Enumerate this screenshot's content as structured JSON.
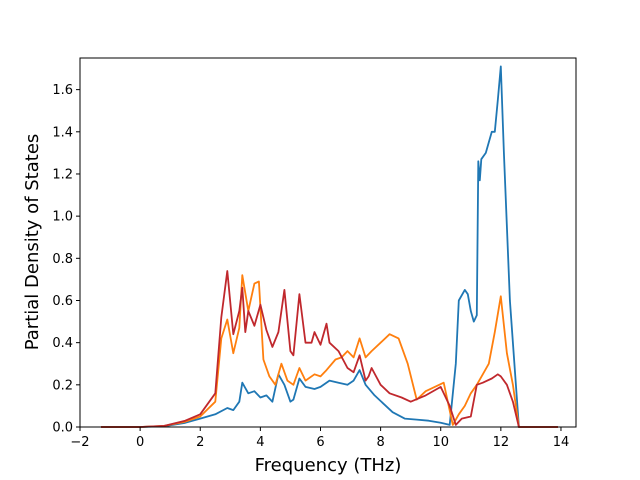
{
  "chart_data": {
    "type": "line",
    "title": "",
    "xlabel": "Frequency (THz)",
    "ylabel": "Partial Density of States",
    "xlim": [
      -2,
      14.5
    ],
    "ylim": [
      0,
      1.75
    ],
    "grid": false,
    "x_ticks": [
      "−2",
      "0",
      "2",
      "4",
      "6",
      "8",
      "10",
      "12",
      "14"
    ],
    "y_ticks": [
      "0.0",
      "0.2",
      "0.4",
      "0.6",
      "0.8",
      "1.0",
      "1.2",
      "1.4",
      "1.6"
    ],
    "series": [
      {
        "color": "#1f77b4",
        "x": [
          -1.3,
          0.0,
          0.8,
          1.5,
          2.0,
          2.5,
          2.9,
          3.1,
          3.3,
          3.4,
          3.6,
          3.8,
          4.0,
          4.2,
          4.4,
          4.6,
          4.8,
          5.0,
          5.1,
          5.3,
          5.5,
          5.8,
          6.0,
          6.3,
          6.6,
          6.9,
          7.1,
          7.3,
          7.5,
          7.8,
          8.1,
          8.4,
          8.8,
          9.2,
          9.6,
          10.0,
          10.3,
          10.5,
          10.6,
          10.8,
          10.9,
          11.0,
          11.1,
          11.2,
          11.25,
          11.3,
          11.35,
          11.5,
          11.7,
          11.8,
          11.9,
          12.0,
          12.1,
          12.2,
          12.3,
          12.5,
          12.6,
          13.0,
          13.9
        ],
        "y": [
          0.0,
          0.0,
          0.004,
          0.02,
          0.04,
          0.06,
          0.09,
          0.08,
          0.12,
          0.21,
          0.16,
          0.17,
          0.14,
          0.15,
          0.12,
          0.25,
          0.2,
          0.12,
          0.13,
          0.23,
          0.19,
          0.18,
          0.19,
          0.22,
          0.21,
          0.2,
          0.22,
          0.27,
          0.2,
          0.15,
          0.11,
          0.07,
          0.04,
          0.035,
          0.03,
          0.02,
          0.01,
          0.3,
          0.6,
          0.65,
          0.63,
          0.55,
          0.5,
          0.53,
          1.26,
          1.17,
          1.27,
          1.3,
          1.4,
          1.4,
          1.55,
          1.71,
          1.3,
          0.95,
          0.6,
          0.2,
          0.0,
          0.0,
          0.0
        ]
      },
      {
        "color": "#ff7f0e",
        "x": [
          -1.3,
          0.0,
          0.8,
          1.5,
          2.0,
          2.5,
          2.7,
          2.9,
          3.1,
          3.3,
          3.4,
          3.6,
          3.8,
          3.95,
          4.1,
          4.3,
          4.5,
          4.7,
          4.9,
          5.1,
          5.3,
          5.5,
          5.8,
          6.0,
          6.2,
          6.5,
          6.7,
          6.9,
          7.1,
          7.3,
          7.5,
          7.7,
          8.0,
          8.3,
          8.6,
          8.9,
          9.2,
          9.5,
          9.8,
          10.1,
          10.4,
          10.6,
          10.8,
          11.0,
          11.2,
          11.4,
          11.6,
          11.8,
          12.0,
          12.2,
          12.4,
          12.6,
          13.0,
          13.9
        ],
        "y": [
          0.0,
          0.0,
          0.005,
          0.025,
          0.05,
          0.12,
          0.42,
          0.51,
          0.35,
          0.47,
          0.72,
          0.55,
          0.68,
          0.69,
          0.32,
          0.24,
          0.2,
          0.3,
          0.22,
          0.2,
          0.28,
          0.22,
          0.25,
          0.24,
          0.27,
          0.32,
          0.33,
          0.36,
          0.33,
          0.42,
          0.33,
          0.36,
          0.4,
          0.44,
          0.42,
          0.3,
          0.13,
          0.17,
          0.19,
          0.21,
          0.01,
          0.06,
          0.1,
          0.16,
          0.2,
          0.25,
          0.3,
          0.45,
          0.62,
          0.35,
          0.2,
          0.0,
          0.0,
          0.0
        ]
      },
      {
        "color": "#c0282d",
        "x": [
          -1.3,
          0.0,
          0.8,
          1.5,
          2.0,
          2.5,
          2.7,
          2.9,
          3.1,
          3.3,
          3.4,
          3.5,
          3.6,
          3.8,
          4.0,
          4.2,
          4.4,
          4.6,
          4.8,
          5.0,
          5.1,
          5.3,
          5.5,
          5.7,
          5.8,
          6.0,
          6.2,
          6.3,
          6.6,
          6.9,
          7.1,
          7.3,
          7.5,
          7.6,
          7.7,
          8.0,
          8.3,
          8.7,
          9.0,
          9.5,
          10.0,
          10.3,
          10.5,
          10.7,
          11.0,
          11.2,
          11.4,
          11.7,
          11.9,
          12.0,
          12.2,
          12.4,
          12.6,
          13.0,
          13.9
        ],
        "y": [
          0.0,
          0.0,
          0.005,
          0.03,
          0.06,
          0.16,
          0.52,
          0.74,
          0.44,
          0.55,
          0.66,
          0.45,
          0.55,
          0.48,
          0.58,
          0.46,
          0.38,
          0.45,
          0.65,
          0.36,
          0.34,
          0.63,
          0.4,
          0.4,
          0.45,
          0.39,
          0.49,
          0.4,
          0.36,
          0.28,
          0.26,
          0.34,
          0.22,
          0.24,
          0.28,
          0.2,
          0.16,
          0.14,
          0.12,
          0.15,
          0.19,
          0.1,
          0.01,
          0.04,
          0.05,
          0.2,
          0.21,
          0.23,
          0.25,
          0.24,
          0.2,
          0.12,
          0.0,
          0.0,
          0.0
        ]
      }
    ]
  }
}
